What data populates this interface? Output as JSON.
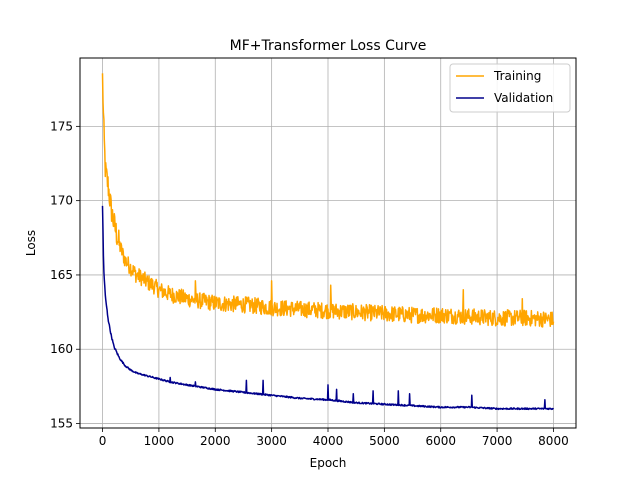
{
  "chart_data": {
    "type": "line",
    "title": "MF+Transformer Loss Curve",
    "xlabel": "Epoch",
    "ylabel": "Loss",
    "xlim": [
      -400,
      8400
    ],
    "ylim": [
      154.7,
      179.6
    ],
    "xticks": [
      0,
      1000,
      2000,
      3000,
      4000,
      5000,
      6000,
      7000,
      8000
    ],
    "yticks": [
      155,
      160,
      165,
      170,
      175
    ],
    "grid": true,
    "legend_position": "top-right",
    "series": [
      {
        "name": "Training",
        "color": "#FFA500",
        "x": [
          0,
          20,
          50,
          100,
          150,
          200,
          300,
          400,
          500,
          600,
          700,
          800,
          900,
          1000,
          1200,
          1500,
          2000,
          2500,
          3000,
          3500,
          4000,
          4500,
          5000,
          5500,
          6000,
          6500,
          7000,
          7500,
          8000
        ],
        "y": [
          178.3,
          175.0,
          172.0,
          171.0,
          169.5,
          168.5,
          167.0,
          166.0,
          165.5,
          165.0,
          164.8,
          164.5,
          164.3,
          164.0,
          163.7,
          163.4,
          163.1,
          163.0,
          162.8,
          162.7,
          162.6,
          162.5,
          162.4,
          162.3,
          162.3,
          162.2,
          162.1,
          162.1,
          162.0
        ],
        "noise": 0.55,
        "spikes": [
          [
            1650,
            164.6
          ],
          [
            2300,
            164.5
          ],
          [
            2500,
            164.7
          ],
          [
            3000,
            164.6
          ],
          [
            3900,
            164.9
          ],
          [
            4050,
            164.3
          ],
          [
            6400,
            164.0
          ],
          [
            7450,
            163.4
          ]
        ]
      },
      {
        "name": "Validation",
        "color": "#00008B",
        "x": [
          0,
          20,
          50,
          100,
          150,
          200,
          300,
          400,
          500,
          600,
          700,
          800,
          900,
          1000,
          1200,
          1500,
          2000,
          2500,
          3000,
          3500,
          4000,
          4500,
          5000,
          5500,
          6000,
          6500,
          7000,
          7500,
          8000
        ],
        "y": [
          169.6,
          165.5,
          163.5,
          162.0,
          161.0,
          160.2,
          159.4,
          158.9,
          158.6,
          158.4,
          158.3,
          158.2,
          158.1,
          158.0,
          157.8,
          157.6,
          157.3,
          157.1,
          156.9,
          156.7,
          156.6,
          156.4,
          156.3,
          156.2,
          156.1,
          156.1,
          156.0,
          156.0,
          156.0
        ],
        "noise": 0.05,
        "spikes": [
          [
            1200,
            158.1
          ],
          [
            1650,
            157.8
          ],
          [
            2100,
            157.7
          ],
          [
            2300,
            157.8
          ],
          [
            2550,
            157.9
          ],
          [
            2850,
            157.9
          ],
          [
            3100,
            157.6
          ],
          [
            3300,
            157.5
          ],
          [
            3700,
            157.5
          ],
          [
            3900,
            157.8
          ],
          [
            4000,
            157.6
          ],
          [
            4150,
            157.3
          ],
          [
            4450,
            157.0
          ],
          [
            4800,
            157.2
          ],
          [
            5100,
            157.1
          ],
          [
            5250,
            157.2
          ],
          [
            5450,
            157.0
          ],
          [
            5900,
            157.2
          ],
          [
            6300,
            157.2
          ],
          [
            6550,
            156.9
          ],
          [
            6900,
            156.8
          ],
          [
            7300,
            156.6
          ],
          [
            7850,
            156.6
          ]
        ]
      }
    ]
  }
}
